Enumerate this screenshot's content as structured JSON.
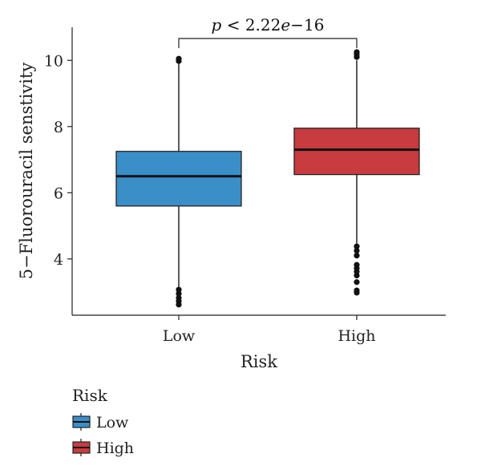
{
  "chart_data": {
    "type": "box",
    "xlabel": "Risk",
    "ylabel": "5−Fluorouracil senstivity",
    "ylim": [
      2.3,
      11.0
    ],
    "yticks": [
      4,
      6,
      8,
      10
    ],
    "categories": [
      "Low",
      "High"
    ],
    "boxes": [
      {
        "name": "Low",
        "color": "#3b8fc8",
        "whisker_low": 3.15,
        "q1": 5.6,
        "median": 6.5,
        "q3": 7.25,
        "whisker_high": 9.9,
        "outliers": [
          2.62,
          2.72,
          2.82,
          2.95,
          3.07,
          9.98,
          10.05
        ]
      },
      {
        "name": "High",
        "color": "#c83b3f",
        "whisker_low": 4.45,
        "q1": 6.55,
        "median": 7.3,
        "q3": 7.95,
        "whisker_high": 10.0,
        "outliers": [
          2.98,
          3.05,
          3.3,
          3.5,
          3.62,
          3.72,
          3.82,
          4.1,
          4.25,
          4.38,
          10.1,
          10.18,
          10.25
        ]
      }
    ],
    "annotation": {
      "p_prefix": "p",
      "p_value": " < 2.22",
      "p_e": "e",
      "p_exp": "−16"
    },
    "legend": {
      "title": "Risk",
      "items": [
        {
          "label": "Low",
          "color": "#3b8fc8"
        },
        {
          "label": "High",
          "color": "#c83b3f"
        }
      ]
    }
  }
}
